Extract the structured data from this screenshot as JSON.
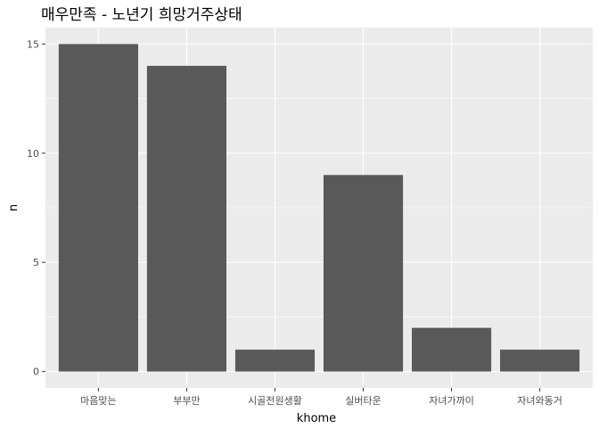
{
  "chart_data": {
    "type": "bar",
    "title": "매우만족 - 노년기 희망거주상태",
    "xlabel": "khome",
    "ylabel": "n",
    "categories": [
      "마음맞는",
      "부부만",
      "시골전원생활",
      "실버타운",
      "자녀가까이",
      "자녀와동거"
    ],
    "values": [
      15,
      14,
      1,
      9,
      2,
      1
    ],
    "ylim": [
      -0.75,
      15.75
    ],
    "yticks": [
      "0",
      "5",
      "10",
      "15"
    ],
    "grid": true,
    "legend": "none",
    "colors": {
      "panel": "#ebebeb",
      "grid": "#ffffff",
      "bar": "#595959"
    }
  }
}
